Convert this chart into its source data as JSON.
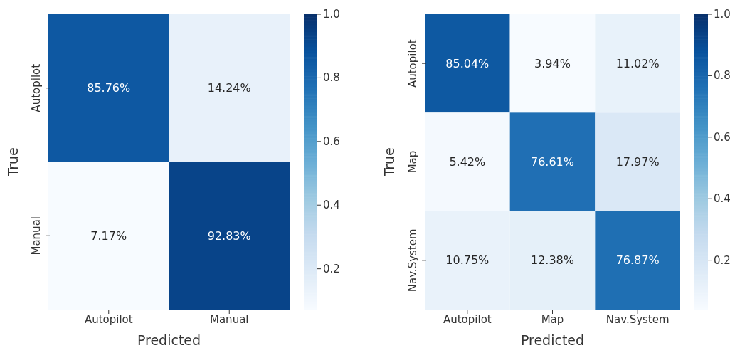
{
  "chart_data": [
    {
      "type": "heatmap",
      "xlabel": "Predicted",
      "ylabel": "True",
      "categories": [
        "Autopilot",
        "Manual"
      ],
      "y_categories": [
        "Autopilot",
        "Manual"
      ],
      "cells": [
        [
          0.8576,
          0.1424
        ],
        [
          0.0717,
          0.9283
        ]
      ],
      "cell_labels": [
        [
          "85.76%",
          "14.24%"
        ],
        [
          "7.17%",
          "92.83%"
        ]
      ],
      "clim": [
        0.0717,
        1.0
      ],
      "cticks": [
        {
          "value": 0.2,
          "label": "0.2"
        },
        {
          "value": 0.4,
          "label": "0.4"
        },
        {
          "value": 0.6,
          "label": "0.6"
        },
        {
          "value": 0.8,
          "label": "0.8"
        },
        {
          "value": 1.0,
          "label": "1.0"
        }
      ]
    },
    {
      "type": "heatmap",
      "xlabel": "Predicted",
      "ylabel": "True",
      "categories": [
        "Autopilot",
        "Map",
        "Nav.System"
      ],
      "y_categories": [
        "Autopilot",
        "Map",
        "Nav.System"
      ],
      "cells": [
        [
          0.8504,
          0.0394,
          0.1102
        ],
        [
          0.0542,
          0.7661,
          0.1797
        ],
        [
          0.1075,
          0.1238,
          0.7687
        ]
      ],
      "cell_labels": [
        [
          "85.04%",
          "3.94%",
          "11.02%"
        ],
        [
          "5.42%",
          "76.61%",
          "17.97%"
        ],
        [
          "10.75%",
          "12.38%",
          "76.87%"
        ]
      ],
      "clim": [
        0.0394,
        1.0
      ],
      "cticks": [
        {
          "value": 0.2,
          "label": "0.2"
        },
        {
          "value": 0.4,
          "label": "0.4"
        },
        {
          "value": 0.6,
          "label": "0.6"
        },
        {
          "value": 0.8,
          "label": "0.8"
        },
        {
          "value": 1.0,
          "label": "1.0"
        }
      ]
    }
  ]
}
